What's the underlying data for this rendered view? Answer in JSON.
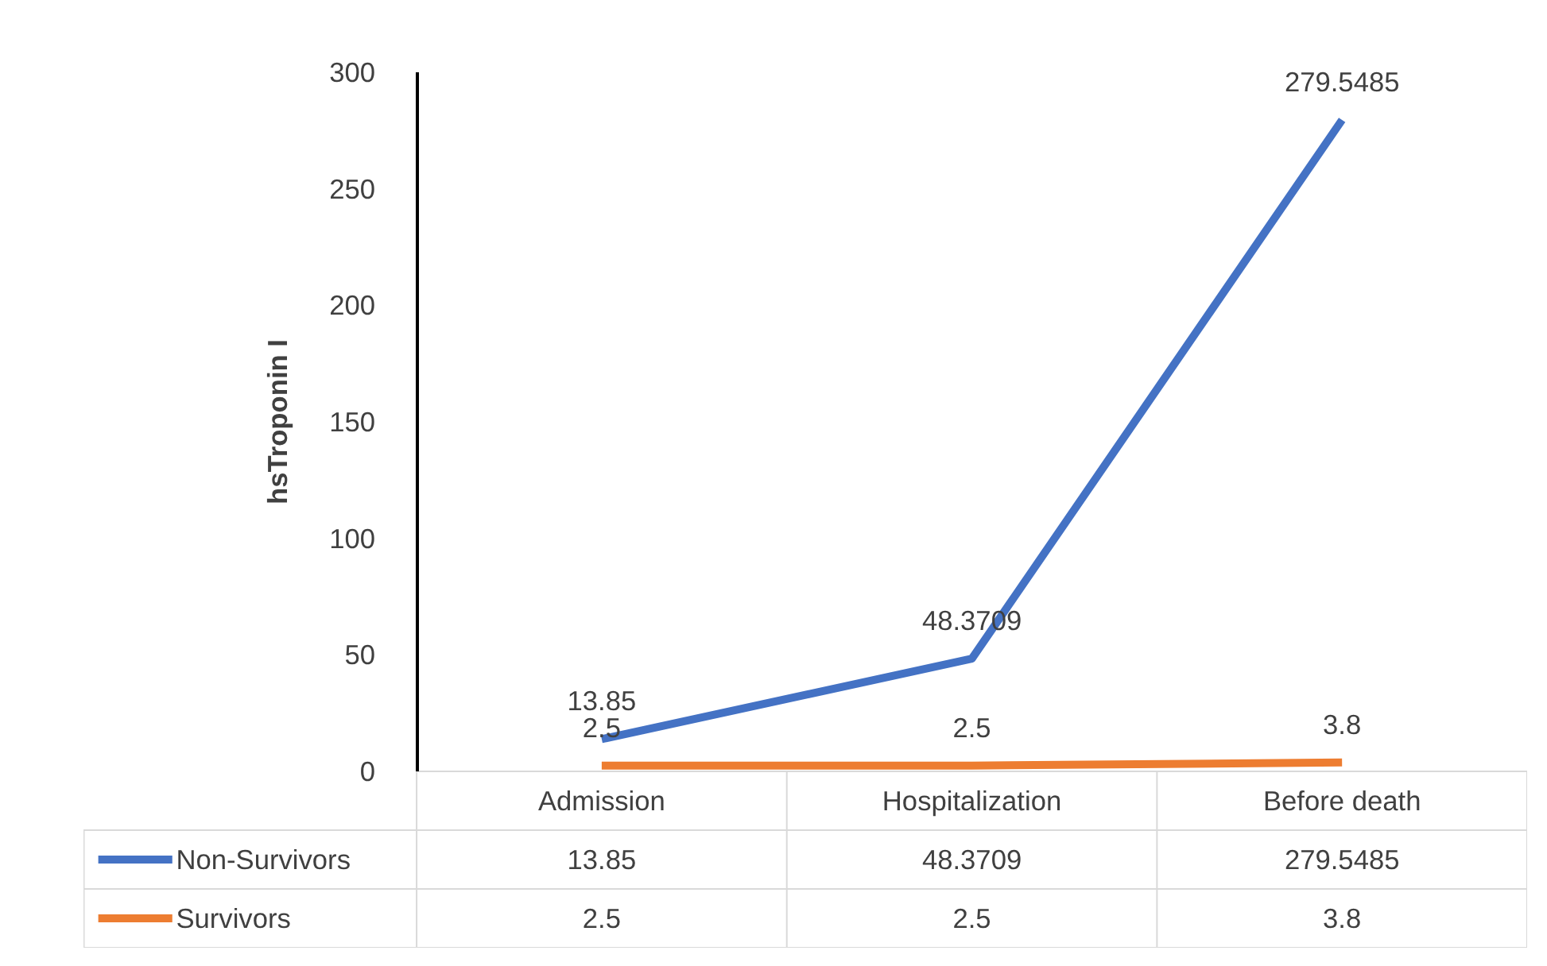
{
  "chart_data": {
    "type": "line",
    "ylabel": "hsTroponin I",
    "categories": [
      "Admission",
      "Hospitalization",
      "Before death"
    ],
    "series": [
      {
        "name": "Non-Survivors",
        "color": "#4472c4",
        "values": [
          13.85,
          48.3709,
          279.5485
        ],
        "value_labels": [
          "13.85",
          "48.3709",
          "279.5485"
        ]
      },
      {
        "name": "Survivors",
        "color": "#ed7d31",
        "values": [
          2.5,
          2.5,
          3.8
        ],
        "value_labels": [
          "2.5",
          "2.5",
          "3.8"
        ]
      }
    ],
    "ylim": [
      0,
      300
    ],
    "yticks": [
      0,
      50,
      100,
      150,
      200,
      250,
      300
    ],
    "annotations": [
      "13.85",
      "48.3709",
      "279.5485",
      "2.5",
      "2.5",
      "3.8"
    ],
    "legend": "bottom",
    "marker": "none",
    "line_style": "solid"
  }
}
